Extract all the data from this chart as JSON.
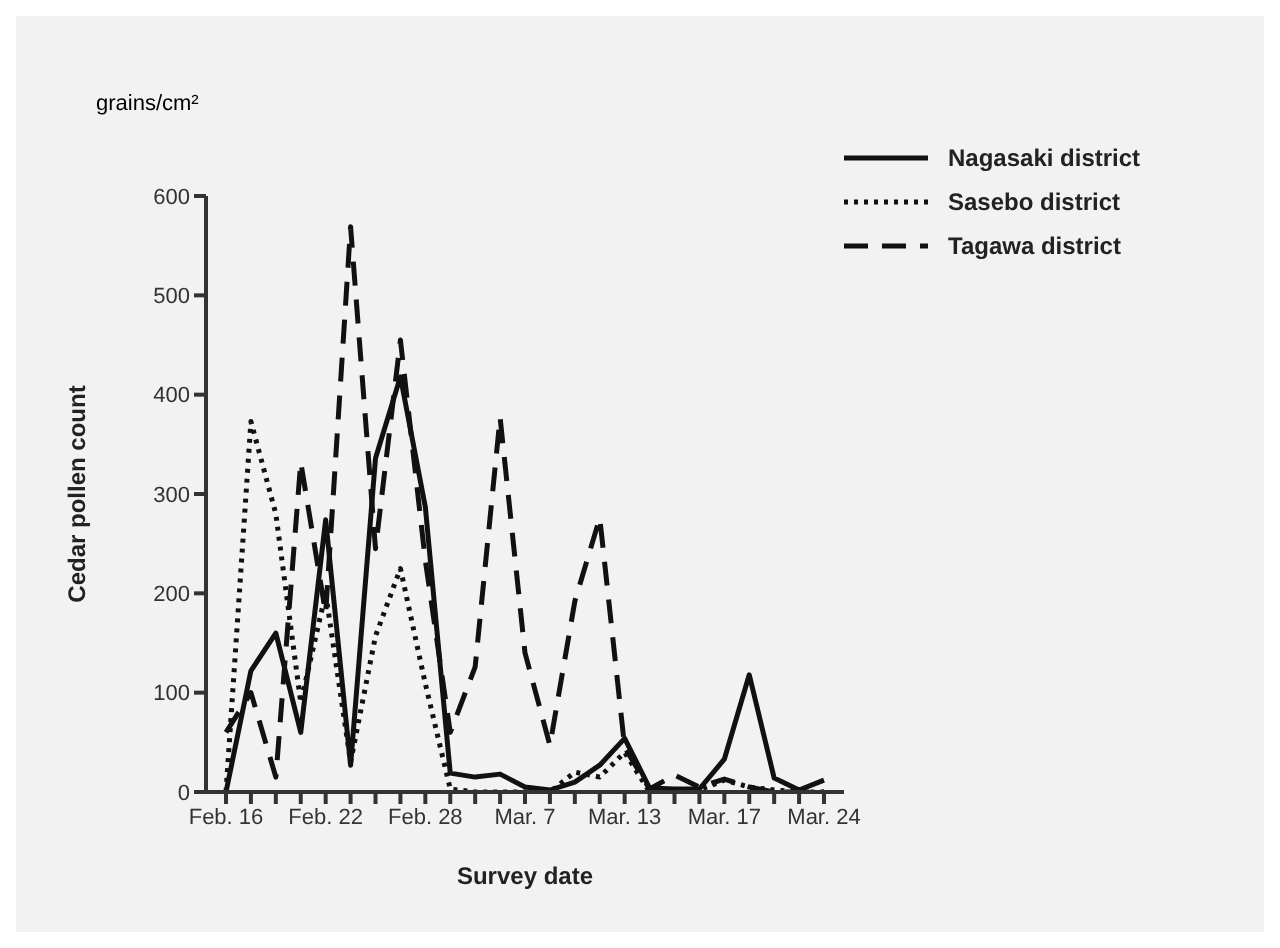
{
  "chart_data": {
    "type": "line",
    "xlabel": "Survey date",
    "ylabel": "Cedar pollen count",
    "annotations": [
      "grains/cm²"
    ],
    "categories": [
      "Feb. 16",
      null,
      null,
      null,
      "Feb. 22",
      null,
      null,
      null,
      "Feb. 28",
      null,
      null,
      null,
      "Mar. 7",
      null,
      null,
      null,
      "Mar. 13",
      null,
      null,
      null,
      "Mar. 17",
      null,
      null,
      null,
      "Mar. 24"
    ],
    "series": [
      {
        "name": "Nagasaki district",
        "color": "#111111",
        "line_style": "solid",
        "values": [
          0,
          122,
          160,
          60,
          274,
          27,
          336,
          418,
          287,
          19,
          15,
          18,
          5,
          2,
          10,
          27,
          54,
          4,
          3,
          3,
          33,
          118,
          14,
          2,
          12
        ]
      },
      {
        "name": "Sasebo district",
        "color": "#111111",
        "line_style": "dotted",
        "values": [
          0,
          373,
          280,
          90,
          200,
          30,
          157,
          225,
          109,
          3,
          0,
          0,
          0,
          0,
          20,
          15,
          40,
          0,
          0,
          2,
          12,
          5,
          2,
          0,
          0
        ]
      },
      {
        "name": "Tagawa district",
        "color": "#111111",
        "line_style": "dashed",
        "values": [
          60,
          100,
          15,
          332,
          180,
          569,
          245,
          455,
          233,
          60,
          126,
          377,
          140,
          47,
          192,
          276,
          45,
          3,
          17,
          5,
          13,
          5,
          0,
          0,
          0
        ]
      }
    ],
    "ylim": [
      0,
      600
    ],
    "yticks": [
      0,
      100,
      200,
      300,
      400,
      500,
      600
    ],
    "grid": false,
    "legend": "top right",
    "marker": "none"
  }
}
